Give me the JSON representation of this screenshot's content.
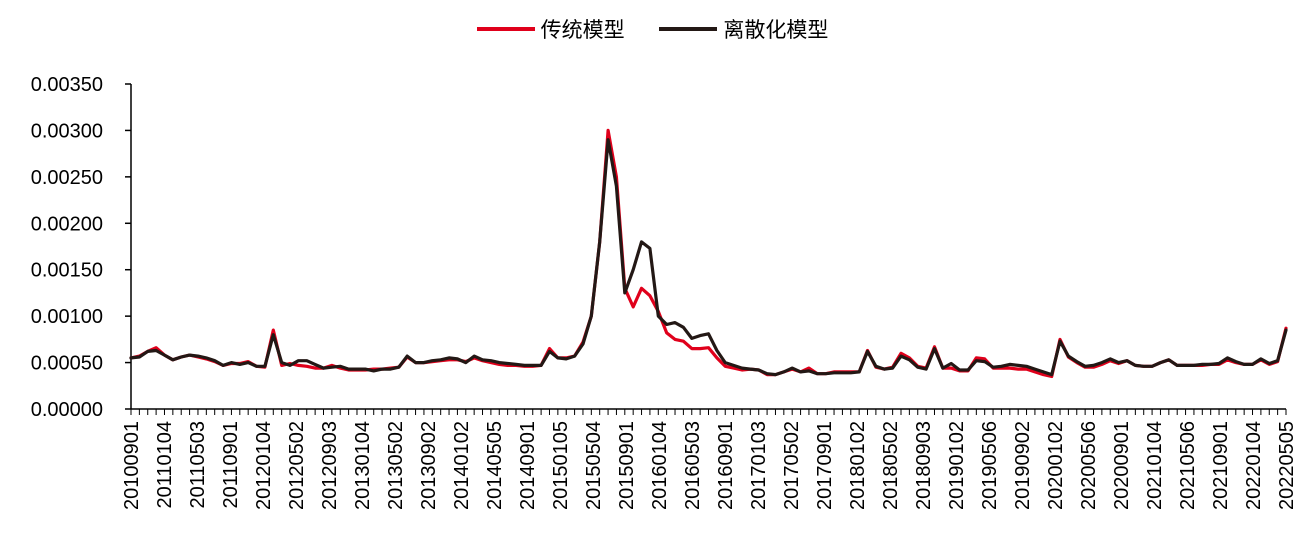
{
  "chart_data": {
    "type": "line",
    "title": "",
    "xlabel": "",
    "ylabel": "",
    "ylim": [
      0,
      0.0035
    ],
    "yticks": [
      "0.00000",
      "0.00050",
      "0.00100",
      "0.00150",
      "0.00200",
      "0.00250",
      "0.00300",
      "0.00350"
    ],
    "x_tick_labels": [
      "20100901",
      "20110104",
      "20110503",
      "20110901",
      "20120104",
      "20120502",
      "20120903",
      "20130104",
      "20130502",
      "20130902",
      "20140102",
      "20140505",
      "20140901",
      "20150105",
      "20150504",
      "20150901",
      "20160104",
      "20160503",
      "20160901",
      "20170103",
      "20170502",
      "20170901",
      "20180102",
      "20180502",
      "20180903",
      "20190102",
      "20190506",
      "20190902",
      "20200102",
      "20200506",
      "20200901",
      "20210104",
      "20210506",
      "20210901",
      "20220104",
      "20220505"
    ],
    "legend_position": "top-center",
    "grid": false,
    "series": [
      {
        "name": "传统模型",
        "color": "#e0001b",
        "values": [
          0.00055,
          0.00057,
          0.00062,
          0.00066,
          0.00058,
          0.00053,
          0.00056,
          0.00058,
          0.00056,
          0.00054,
          0.00051,
          0.00047,
          0.00049,
          0.00049,
          0.00051,
          0.00046,
          0.00045,
          0.00085,
          0.00047,
          0.00049,
          0.00047,
          0.00046,
          0.00044,
          0.00044,
          0.00047,
          0.00044,
          0.00042,
          0.00042,
          0.00042,
          0.00043,
          0.00043,
          0.00044,
          0.00045,
          0.00056,
          0.0005,
          0.0005,
          0.00051,
          0.00052,
          0.00053,
          0.00053,
          0.00051,
          0.00055,
          0.00052,
          0.0005,
          0.00048,
          0.00047,
          0.00047,
          0.00046,
          0.00046,
          0.00047,
          0.00065,
          0.00055,
          0.00055,
          0.00057,
          0.00072,
          0.001,
          0.0018,
          0.003,
          0.0025,
          0.0013,
          0.0011,
          0.0013,
          0.00122,
          0.00105,
          0.00082,
          0.00075,
          0.00073,
          0.00065,
          0.00065,
          0.00066,
          0.00055,
          0.00046,
          0.00044,
          0.00042,
          0.00043,
          0.00042,
          0.00037,
          0.00037,
          0.0004,
          0.00043,
          0.0004,
          0.00044,
          0.00038,
          0.00038,
          0.0004,
          0.0004,
          0.0004,
          0.0004,
          0.00063,
          0.00045,
          0.00043,
          0.00045,
          0.0006,
          0.00055,
          0.00046,
          0.00044,
          0.00067,
          0.00044,
          0.00044,
          0.00041,
          0.00041,
          0.00055,
          0.00054,
          0.00044,
          0.00044,
          0.00044,
          0.00043,
          0.00043,
          0.0004,
          0.00037,
          0.00035,
          0.00075,
          0.00056,
          0.0005,
          0.00045,
          0.00045,
          0.00048,
          0.00052,
          0.00049,
          0.00052,
          0.00047,
          0.00046,
          0.00046,
          0.0005,
          0.00053,
          0.00047,
          0.00047,
          0.00047,
          0.00047,
          0.00048,
          0.00048,
          0.00053,
          0.0005,
          0.00048,
          0.00048,
          0.00053,
          0.00048,
          0.00051,
          0.00087
        ]
      },
      {
        "name": "离散化模型",
        "color": "#231815",
        "values": [
          0.00055,
          0.00056,
          0.00062,
          0.00063,
          0.00058,
          0.00053,
          0.00056,
          0.00058,
          0.00057,
          0.00055,
          0.00052,
          0.00047,
          0.0005,
          0.00048,
          0.0005,
          0.00046,
          0.00046,
          0.0008,
          0.0005,
          0.00047,
          0.00052,
          0.00052,
          0.00048,
          0.00044,
          0.00045,
          0.00046,
          0.00043,
          0.00043,
          0.00043,
          0.00041,
          0.00043,
          0.00043,
          0.00045,
          0.00057,
          0.0005,
          0.0005,
          0.00052,
          0.00053,
          0.00055,
          0.00054,
          0.0005,
          0.00057,
          0.00053,
          0.00052,
          0.0005,
          0.00049,
          0.00048,
          0.00047,
          0.00047,
          0.00047,
          0.00062,
          0.00055,
          0.00054,
          0.00057,
          0.0007,
          0.001,
          0.0018,
          0.0029,
          0.0024,
          0.00125,
          0.0015,
          0.0018,
          0.00173,
          0.001,
          0.00091,
          0.00093,
          0.00088,
          0.00076,
          0.00079,
          0.00081,
          0.00063,
          0.0005,
          0.00047,
          0.00044,
          0.00043,
          0.00042,
          0.00038,
          0.00037,
          0.0004,
          0.00044,
          0.0004,
          0.00041,
          0.00038,
          0.00038,
          0.00039,
          0.00039,
          0.00039,
          0.0004,
          0.00062,
          0.00046,
          0.00043,
          0.00044,
          0.00057,
          0.00053,
          0.00045,
          0.00043,
          0.00065,
          0.00044,
          0.00049,
          0.00042,
          0.00042,
          0.00052,
          0.00051,
          0.00045,
          0.00046,
          0.00048,
          0.00047,
          0.00046,
          0.00043,
          0.0004,
          0.00037,
          0.00073,
          0.00057,
          0.00051,
          0.00046,
          0.00047,
          0.0005,
          0.00054,
          0.0005,
          0.00052,
          0.00047,
          0.00046,
          0.00046,
          0.0005,
          0.00053,
          0.00047,
          0.00047,
          0.00047,
          0.00048,
          0.00048,
          0.00049,
          0.00055,
          0.00051,
          0.00048,
          0.00048,
          0.00054,
          0.00049,
          0.00052,
          0.00085
        ]
      }
    ]
  }
}
